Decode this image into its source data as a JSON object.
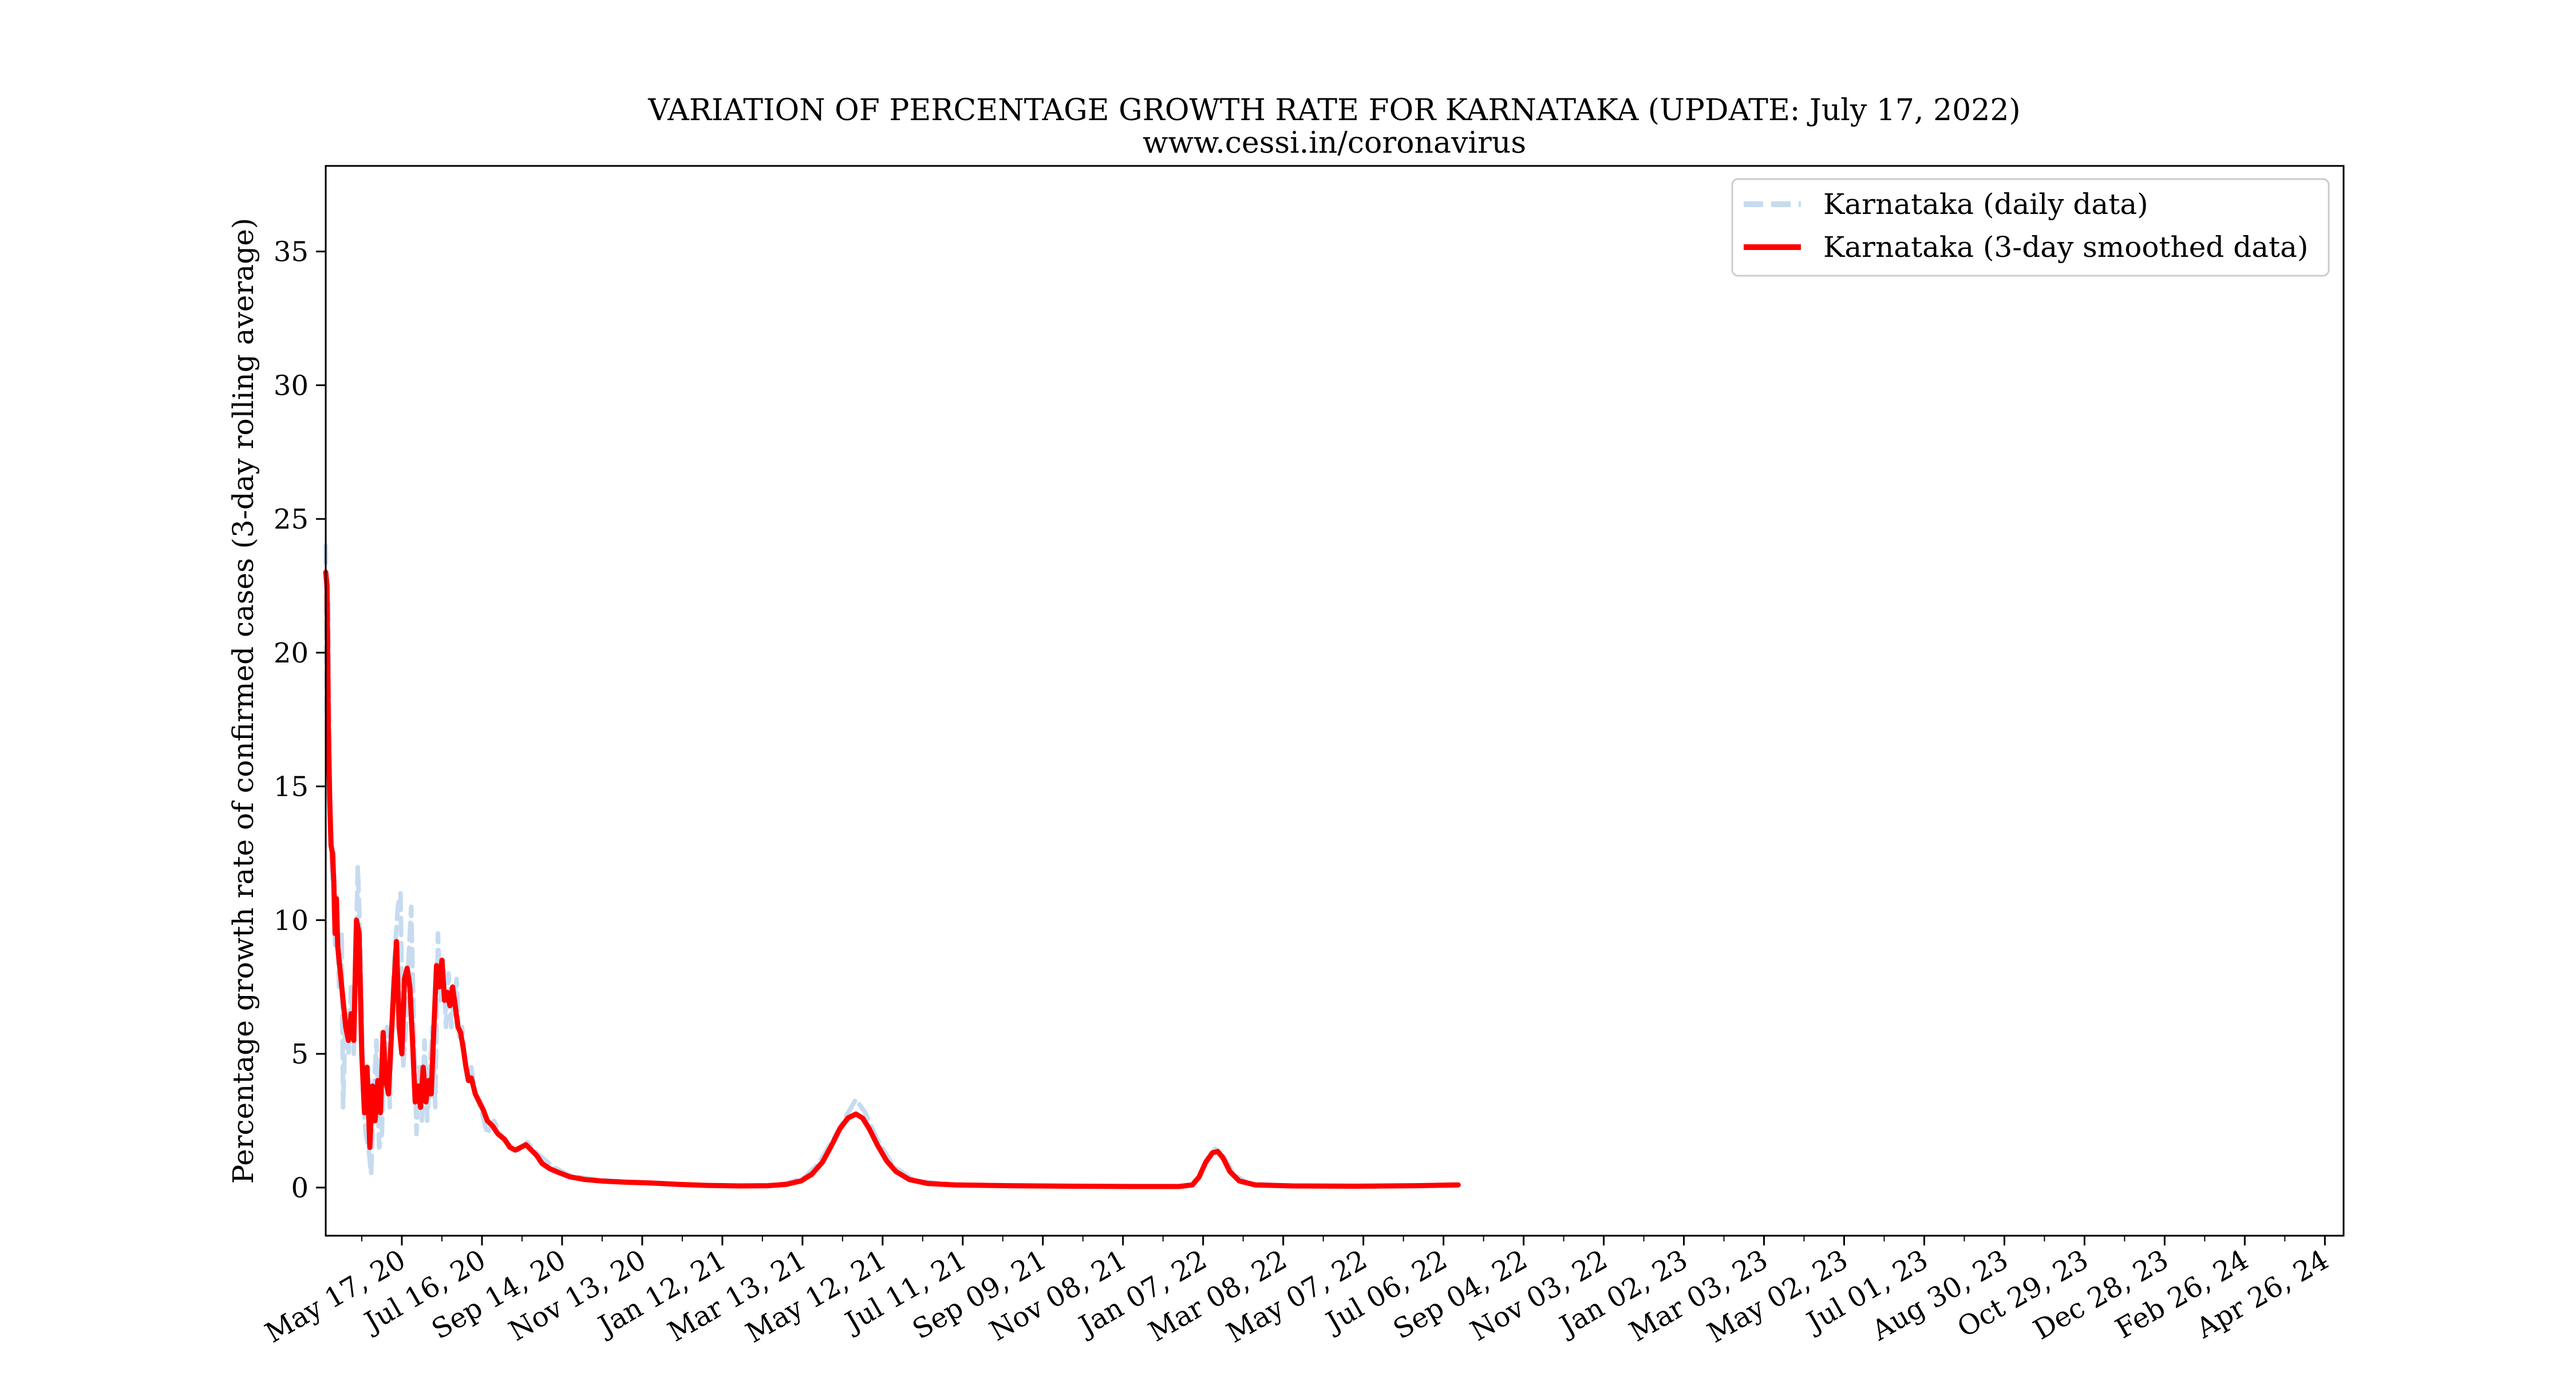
{
  "chart_data": {
    "type": "line",
    "title": "VARIATION OF PERCENTAGE GROWTH RATE FOR KARNATAKA (UPDATE: July 17, 2022)",
    "subtitle": "www.cessi.in/coronavirus",
    "xlabel": "",
    "ylabel": "Percentage growth rate of confirmed cases (3-day rolling average)",
    "xlim": [
      "2020-03-21",
      "2024-05-10"
    ],
    "ylim": [
      -1.8,
      38.2
    ],
    "yticks": [
      0,
      5,
      10,
      15,
      20,
      25,
      30,
      35
    ],
    "xticks": [
      {
        "date": "2020-05-17",
        "label": "May 17, 20"
      },
      {
        "date": "2020-07-16",
        "label": "Jul 16, 20"
      },
      {
        "date": "2020-09-14",
        "label": "Sep 14, 20"
      },
      {
        "date": "2020-11-13",
        "label": "Nov 13, 20"
      },
      {
        "date": "2021-01-12",
        "label": "Jan 12, 21"
      },
      {
        "date": "2021-03-13",
        "label": "Mar 13, 21"
      },
      {
        "date": "2021-05-12",
        "label": "May 12, 21"
      },
      {
        "date": "2021-07-11",
        "label": "Jul 11, 21"
      },
      {
        "date": "2021-09-09",
        "label": "Sep 09, 21"
      },
      {
        "date": "2021-11-08",
        "label": "Nov 08, 21"
      },
      {
        "date": "2022-01-07",
        "label": "Jan 07, 22"
      },
      {
        "date": "2022-03-08",
        "label": "Mar 08, 22"
      },
      {
        "date": "2022-05-07",
        "label": "May 07, 22"
      },
      {
        "date": "2022-07-06",
        "label": "Jul 06, 22"
      },
      {
        "date": "2022-09-04",
        "label": "Sep 04, 22"
      },
      {
        "date": "2022-11-03",
        "label": "Nov 03, 22"
      },
      {
        "date": "2023-01-02",
        "label": "Jan 02, 23"
      },
      {
        "date": "2023-03-03",
        "label": "Mar 03, 23"
      },
      {
        "date": "2023-05-02",
        "label": "May 02, 23"
      },
      {
        "date": "2023-07-01",
        "label": "Jul 01, 23"
      },
      {
        "date": "2023-08-30",
        "label": "Aug 30, 23"
      },
      {
        "date": "2023-10-29",
        "label": "Oct 29, 23"
      },
      {
        "date": "2023-12-28",
        "label": "Dec 28, 23"
      },
      {
        "date": "2024-02-26",
        "label": "Feb 26, 24"
      },
      {
        "date": "2024-04-26",
        "label": "Apr 26, 24"
      }
    ],
    "grid": false,
    "legend_position": "top-right",
    "series": [
      {
        "name": "Karnataka (daily data)",
        "style": "dashed",
        "color": "#c6dbef",
        "points": [
          [
            "2020-03-21",
            24.0
          ],
          [
            "2020-03-22",
            16.5
          ],
          [
            "2020-03-23",
            22.0
          ],
          [
            "2020-03-24",
            14.0
          ],
          [
            "2020-03-25",
            13.0
          ],
          [
            "2020-03-26",
            11.5
          ],
          [
            "2020-03-27",
            12.5
          ],
          [
            "2020-03-28",
            9.0
          ],
          [
            "2020-03-29",
            11.0
          ],
          [
            "2020-03-31",
            7.5
          ],
          [
            "2020-04-02",
            9.5
          ],
          [
            "2020-04-03",
            3.0
          ],
          [
            "2020-04-05",
            6.5
          ],
          [
            "2020-04-07",
            5.0
          ],
          [
            "2020-04-09",
            7.5
          ],
          [
            "2020-04-11",
            5.0
          ],
          [
            "2020-04-14",
            12.0
          ],
          [
            "2020-04-16",
            9.0
          ],
          [
            "2020-04-18",
            3.5
          ],
          [
            "2020-04-20",
            2.0
          ],
          [
            "2020-04-22",
            1.5
          ],
          [
            "2020-04-24",
            0.5
          ],
          [
            "2020-04-26",
            3.5
          ],
          [
            "2020-04-28",
            5.5
          ],
          [
            "2020-04-30",
            1.5
          ],
          [
            "2020-05-02",
            2.0
          ],
          [
            "2020-05-04",
            5.0
          ],
          [
            "2020-05-06",
            6.0
          ],
          [
            "2020-05-08",
            3.0
          ],
          [
            "2020-05-10",
            7.0
          ],
          [
            "2020-05-12",
            9.0
          ],
          [
            "2020-05-14",
            10.5
          ],
          [
            "2020-05-16",
            11.0
          ],
          [
            "2020-05-18",
            4.5
          ],
          [
            "2020-05-20",
            6.0
          ],
          [
            "2020-05-22",
            8.5
          ],
          [
            "2020-05-24",
            10.5
          ],
          [
            "2020-05-26",
            6.0
          ],
          [
            "2020-05-28",
            2.0
          ],
          [
            "2020-05-30",
            4.5
          ],
          [
            "2020-06-01",
            2.5
          ],
          [
            "2020-06-03",
            5.5
          ],
          [
            "2020-06-05",
            2.5
          ],
          [
            "2020-06-07",
            4.5
          ],
          [
            "2020-06-09",
            6.0
          ],
          [
            "2020-06-11",
            3.0
          ],
          [
            "2020-06-13",
            9.5
          ],
          [
            "2020-06-15",
            7.0
          ],
          [
            "2020-06-17",
            8.5
          ],
          [
            "2020-06-19",
            6.0
          ],
          [
            "2020-06-21",
            8.0
          ],
          [
            "2020-06-23",
            6.0
          ],
          [
            "2020-06-25",
            7.0
          ],
          [
            "2020-06-27",
            7.8
          ],
          [
            "2020-06-29",
            5.5
          ],
          [
            "2020-07-01",
            6.0
          ],
          [
            "2020-07-03",
            5.0
          ],
          [
            "2020-07-05",
            4.0
          ],
          [
            "2020-07-08",
            4.5
          ],
          [
            "2020-07-11",
            3.5
          ],
          [
            "2020-07-15",
            3.0
          ],
          [
            "2020-07-20",
            2.0
          ],
          [
            "2020-07-25",
            2.5
          ],
          [
            "2020-07-30",
            2.0
          ],
          [
            "2020-08-05",
            1.6
          ],
          [
            "2020-08-12",
            1.4
          ],
          [
            "2020-08-19",
            1.7
          ],
          [
            "2020-08-26",
            1.3
          ],
          [
            "2020-09-02",
            1.0
          ],
          [
            "2020-09-10",
            0.7
          ],
          [
            "2020-09-20",
            0.45
          ],
          [
            "2020-10-01",
            0.35
          ],
          [
            "2020-10-20",
            0.25
          ],
          [
            "2020-11-15",
            0.18
          ],
          [
            "2020-12-15",
            0.1
          ],
          [
            "2021-01-15",
            0.06
          ],
          [
            "2021-02-15",
            0.08
          ],
          [
            "2021-03-01",
            0.15
          ],
          [
            "2021-03-15",
            0.4
          ],
          [
            "2021-03-25",
            0.9
          ],
          [
            "2021-04-05",
            1.8
          ],
          [
            "2021-04-15",
            2.7
          ],
          [
            "2021-04-22",
            3.3
          ],
          [
            "2021-04-29",
            2.8
          ],
          [
            "2021-05-08",
            1.8
          ],
          [
            "2021-05-20",
            0.8
          ],
          [
            "2021-06-05",
            0.25
          ],
          [
            "2021-07-01",
            0.12
          ],
          [
            "2021-08-15",
            0.08
          ],
          [
            "2021-10-01",
            0.05
          ],
          [
            "2021-12-01",
            0.03
          ],
          [
            "2021-12-28",
            0.06
          ],
          [
            "2022-01-04",
            0.4
          ],
          [
            "2022-01-10",
            1.0
          ],
          [
            "2022-01-16",
            1.45
          ],
          [
            "2022-01-22",
            1.2
          ],
          [
            "2022-01-30",
            0.5
          ],
          [
            "2022-02-10",
            0.15
          ],
          [
            "2022-03-15",
            0.05
          ],
          [
            "2022-05-15",
            0.04
          ],
          [
            "2022-06-20",
            0.08
          ],
          [
            "2022-07-17",
            0.12
          ]
        ]
      },
      {
        "name": "Karnataka (3-day smoothed data)",
        "style": "solid",
        "color": "#ff0000",
        "points": [
          [
            "2020-03-21",
            23.0
          ],
          [
            "2020-03-22",
            22.5
          ],
          [
            "2020-03-23",
            17.0
          ],
          [
            "2020-03-24",
            14.5
          ],
          [
            "2020-03-25",
            12.8
          ],
          [
            "2020-03-26",
            12.5
          ],
          [
            "2020-03-27",
            11.5
          ],
          [
            "2020-03-28",
            9.5
          ],
          [
            "2020-03-29",
            10.8
          ],
          [
            "2020-03-30",
            9.0
          ],
          [
            "2020-04-01",
            8.0
          ],
          [
            "2020-04-03",
            7.0
          ],
          [
            "2020-04-05",
            6.0
          ],
          [
            "2020-04-07",
            5.5
          ],
          [
            "2020-04-09",
            6.5
          ],
          [
            "2020-04-11",
            5.5
          ],
          [
            "2020-04-13",
            10.0
          ],
          [
            "2020-04-15",
            9.5
          ],
          [
            "2020-04-17",
            5.0
          ],
          [
            "2020-04-19",
            2.8
          ],
          [
            "2020-04-21",
            4.5
          ],
          [
            "2020-04-23",
            1.5
          ],
          [
            "2020-04-25",
            3.8
          ],
          [
            "2020-04-27",
            2.5
          ],
          [
            "2020-04-29",
            4.0
          ],
          [
            "2020-05-01",
            2.8
          ],
          [
            "2020-05-03",
            5.8
          ],
          [
            "2020-05-05",
            4.0
          ],
          [
            "2020-05-07",
            3.5
          ],
          [
            "2020-05-09",
            5.5
          ],
          [
            "2020-05-11",
            7.5
          ],
          [
            "2020-05-13",
            9.2
          ],
          [
            "2020-05-15",
            6.0
          ],
          [
            "2020-05-17",
            5.0
          ],
          [
            "2020-05-19",
            7.8
          ],
          [
            "2020-05-21",
            8.2
          ],
          [
            "2020-05-23",
            7.5
          ],
          [
            "2020-05-25",
            5.5
          ],
          [
            "2020-05-27",
            3.2
          ],
          [
            "2020-05-29",
            3.8
          ],
          [
            "2020-05-31",
            3.0
          ],
          [
            "2020-06-02",
            4.5
          ],
          [
            "2020-06-04",
            3.2
          ],
          [
            "2020-06-06",
            4.0
          ],
          [
            "2020-06-08",
            3.5
          ],
          [
            "2020-06-10",
            6.0
          ],
          [
            "2020-06-12",
            8.3
          ],
          [
            "2020-06-14",
            7.5
          ],
          [
            "2020-06-16",
            8.5
          ],
          [
            "2020-06-18",
            7.0
          ],
          [
            "2020-06-20",
            7.3
          ],
          [
            "2020-06-22",
            6.8
          ],
          [
            "2020-06-24",
            7.5
          ],
          [
            "2020-06-26",
            6.8
          ],
          [
            "2020-06-28",
            6.0
          ],
          [
            "2020-06-30",
            5.8
          ],
          [
            "2020-07-02",
            5.2
          ],
          [
            "2020-07-04",
            4.5
          ],
          [
            "2020-07-06",
            4.0
          ],
          [
            "2020-07-08",
            4.1
          ],
          [
            "2020-07-11",
            3.5
          ],
          [
            "2020-07-14",
            3.2
          ],
          [
            "2020-07-17",
            2.9
          ],
          [
            "2020-07-20",
            2.5
          ],
          [
            "2020-07-24",
            2.3
          ],
          [
            "2020-07-28",
            2.0
          ],
          [
            "2020-08-02",
            1.8
          ],
          [
            "2020-08-06",
            1.5
          ],
          [
            "2020-08-10",
            1.4
          ],
          [
            "2020-08-14",
            1.5
          ],
          [
            "2020-08-18",
            1.6
          ],
          [
            "2020-08-22",
            1.4
          ],
          [
            "2020-08-26",
            1.2
          ],
          [
            "2020-08-30",
            0.9
          ],
          [
            "2020-09-05",
            0.7
          ],
          [
            "2020-09-12",
            0.55
          ],
          [
            "2020-09-20",
            0.4
          ],
          [
            "2020-10-01",
            0.3
          ],
          [
            "2020-10-15",
            0.24
          ],
          [
            "2020-11-01",
            0.2
          ],
          [
            "2020-11-20",
            0.17
          ],
          [
            "2020-12-10",
            0.12
          ],
          [
            "2021-01-01",
            0.08
          ],
          [
            "2021-01-25",
            0.06
          ],
          [
            "2021-02-15",
            0.07
          ],
          [
            "2021-03-01",
            0.12
          ],
          [
            "2021-03-12",
            0.25
          ],
          [
            "2021-03-20",
            0.5
          ],
          [
            "2021-03-28",
            0.95
          ],
          [
            "2021-04-04",
            1.6
          ],
          [
            "2021-04-10",
            2.2
          ],
          [
            "2021-04-16",
            2.6
          ],
          [
            "2021-04-22",
            2.75
          ],
          [
            "2021-04-27",
            2.6
          ],
          [
            "2021-05-02",
            2.2
          ],
          [
            "2021-05-08",
            1.6
          ],
          [
            "2021-05-15",
            1.0
          ],
          [
            "2021-05-22",
            0.6
          ],
          [
            "2021-06-01",
            0.3
          ],
          [
            "2021-06-15",
            0.15
          ],
          [
            "2021-07-05",
            0.1
          ],
          [
            "2021-08-15",
            0.07
          ],
          [
            "2021-10-01",
            0.05
          ],
          [
            "2021-11-15",
            0.04
          ],
          [
            "2021-12-20",
            0.04
          ],
          [
            "2021-12-30",
            0.1
          ],
          [
            "2022-01-04",
            0.4
          ],
          [
            "2022-01-09",
            0.95
          ],
          [
            "2022-01-14",
            1.3
          ],
          [
            "2022-01-18",
            1.35
          ],
          [
            "2022-01-22",
            1.1
          ],
          [
            "2022-01-27",
            0.6
          ],
          [
            "2022-02-03",
            0.25
          ],
          [
            "2022-02-15",
            0.1
          ],
          [
            "2022-03-15",
            0.06
          ],
          [
            "2022-05-01",
            0.05
          ],
          [
            "2022-06-15",
            0.07
          ],
          [
            "2022-07-17",
            0.1
          ]
        ]
      }
    ]
  }
}
